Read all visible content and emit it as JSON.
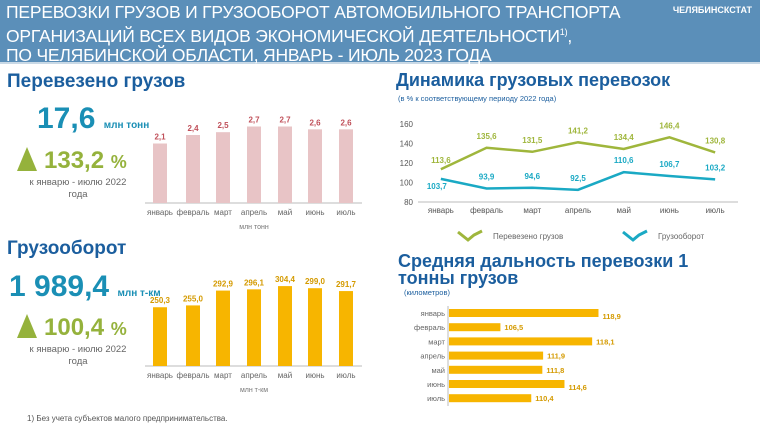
{
  "header": {
    "title_lines": [
      "ПЕРЕВОЗКИ ГРУЗОВ И ГРУЗООБОРОТ АВТОМОБИЛЬНОГО ТРАНСПОРТА",
      "ОРГАНИЗАЦИЙ ВСЕХ ВИДОВ ЭКОНОМИЧЕСКОЙ ДЕЯТЕЛЬНОСТИ",
      "ПО ЧЕЛЯБИНСКОЙ ОБЛАСТИ, ЯНВАРЬ - ИЮЛЬ 2023 ГОДА"
    ],
    "footnote_mark": "1)",
    "comma": ",",
    "org": "ЧЕЛЯБИНСКСТАТ"
  },
  "cargo": {
    "title": "Перевезено грузов",
    "total": "17,6",
    "unit": "млн тонн",
    "pct": "133,2",
    "pct_sign": "%",
    "pct_note": "к январю - июлю 2022 года"
  },
  "turnover": {
    "title": "Грузооборот",
    "total": "1 989,4",
    "unit": "млн т-км",
    "pct": "100,4",
    "pct_sign": "%",
    "pct_note": "к январю - июлю 2022 года"
  },
  "footnote": "1) Без учета субъектов малого предпринимательства.",
  "chart_data": [
    {
      "type": "bar",
      "categories": [
        "январь",
        "февраль",
        "март",
        "апрель",
        "май",
        "июнь",
        "июль"
      ],
      "values": [
        2.1,
        2.4,
        2.5,
        2.7,
        2.7,
        2.6,
        2.6
      ],
      "labels": [
        "2,1",
        "2,4",
        "2,5",
        "2,7",
        "2,7",
        "2,6",
        "2,6"
      ],
      "xlabel": "млн тонн",
      "ylim": [
        0,
        3
      ],
      "color": "#e8c4c6",
      "label_color": "#c0505a"
    },
    {
      "type": "bar",
      "categories": [
        "январь",
        "февраль",
        "март",
        "апрель",
        "май",
        "июнь",
        "июль"
      ],
      "values": [
        250.3,
        255.0,
        292.9,
        296.1,
        304.4,
        299.0,
        291.7
      ],
      "labels": [
        "250,3",
        "255,0",
        "292,9",
        "296,1",
        "304,4",
        "299,0",
        "291,7"
      ],
      "xlabel": "млн т-км",
      "ylim": [
        100,
        320
      ],
      "color": "#f7b500",
      "label_color": "#d49a00"
    },
    {
      "type": "line",
      "title": "Динамика грузовых перевозок",
      "subtitle": "(в % к соответствующему периоду 2022 года)",
      "categories": [
        "январь",
        "февраль",
        "март",
        "апрель",
        "май",
        "июнь",
        "июль"
      ],
      "ylim": [
        80,
        160
      ],
      "yticks": [
        80,
        100,
        120,
        140,
        160
      ],
      "legend": "bottom",
      "series": [
        {
          "name": "Перевезено грузов",
          "values": [
            113.6,
            135.6,
            131.5,
            141.2,
            134.4,
            146.4,
            130.8
          ],
          "labels": [
            "113,6",
            "135,6",
            "131,5",
            "141,2",
            "134,4",
            "146,4",
            "130,8"
          ],
          "color": "#9fb63c"
        },
        {
          "name": "Грузооборот",
          "values": [
            103.7,
            93.9,
            94.6,
            92.5,
            110.6,
            106.7,
            103.2
          ],
          "labels": [
            "103,7",
            "93,9",
            "94,6",
            "92,5",
            "110,6",
            "106,7",
            "103,2"
          ],
          "color": "#1aa9c4"
        }
      ]
    },
    {
      "type": "bar",
      "orientation": "horizontal",
      "title": "Средняя дальность перевозки 1 тонны грузов",
      "subtitle": "(километров)",
      "categories": [
        "январь",
        "февраль",
        "март",
        "апрель",
        "май",
        "июнь",
        "июль"
      ],
      "values": [
        118.9,
        106.5,
        118.1,
        111.9,
        111.8,
        114.6,
        110.4
      ],
      "labels": [
        "118,9",
        "106,5",
        "118,1",
        "111,9",
        "111,8",
        "114,6",
        "110,4"
      ],
      "xlim": [
        100,
        122
      ],
      "color": "#f7b500",
      "label_color": "#d49a00"
    }
  ]
}
